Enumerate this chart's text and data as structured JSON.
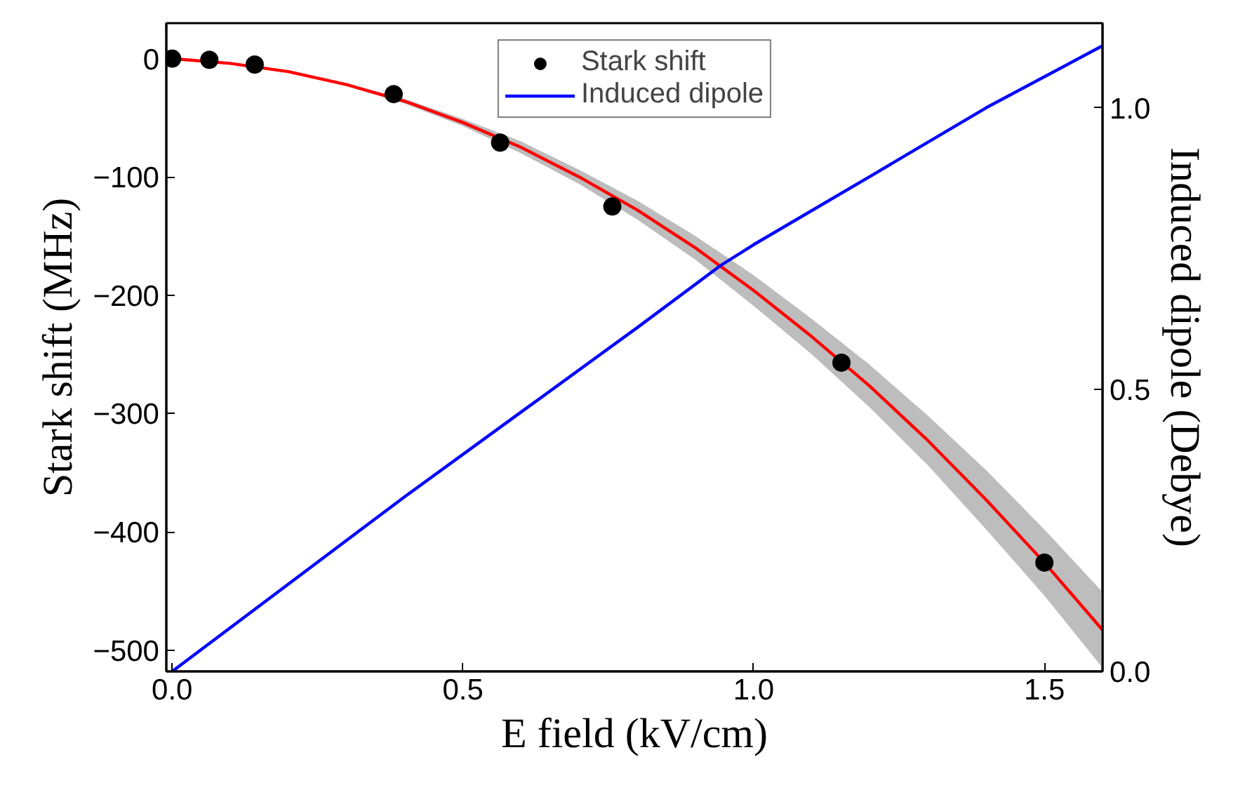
{
  "chart_data": {
    "type": "line",
    "xlabel": "E field (kV/cm)",
    "ylabel": "Stark shift (MHz)",
    "y2label": "Induced dipole (Debye)",
    "xlim": [
      -0.01,
      1.6
    ],
    "ylim": [
      -518,
      30
    ],
    "y2lim": [
      0,
      1.15
    ],
    "xticks": [
      {
        "value": 0,
        "label": "0.0"
      },
      0.5,
      {
        "value": 1,
        "label": "1.0"
      },
      1.5
    ],
    "yticks": [
      0,
      -100,
      -200,
      -300,
      -400,
      -500
    ],
    "y2ticks": [
      {
        "value": 0,
        "label": "0.0"
      },
      0.5,
      {
        "value": 1,
        "label": "1.0"
      }
    ],
    "grid": false,
    "legend": "top",
    "series": [
      {
        "name": "Stark shift",
        "type": "scatter",
        "marker": "circle",
        "color": "#000000",
        "x": [
          0.0,
          0.064,
          0.142,
          0.381,
          0.564,
          0.757,
          1.151,
          1.5
        ],
        "values": [
          0,
          -1,
          -5,
          -30,
          -71,
          -125,
          -257,
          -426
        ]
      },
      {
        "color": "#ff0000",
        "x": [
          0,
          0.1,
          0.2,
          0.3,
          0.4,
          0.5,
          0.6,
          0.7,
          0.8,
          0.9,
          1.0,
          1.1,
          1.2,
          1.3,
          1.4,
          1.5,
          1.6
        ],
        "values": [
          0,
          -4,
          -11,
          -22,
          -36,
          -54,
          -75,
          -100,
          -128,
          -160,
          -196,
          -235,
          -277,
          -323,
          -373,
          -426,
          -483
        ],
        "lower": [
          0,
          -4,
          -11,
          -23,
          -38,
          -57,
          -80,
          -106,
          -136,
          -170,
          -209,
          -250,
          -295,
          -344,
          -398,
          -454,
          -515
        ],
        "upper": [
          0,
          -4,
          -11,
          -21,
          -34,
          -51,
          -70,
          -94,
          -120,
          -150,
          -183,
          -220,
          -259,
          -302,
          -348,
          -398,
          -451
        ]
      },
      {
        "name": "Induced dipole",
        "axis": "y2",
        "color": "#0000ff",
        "x": [
          0,
          0.2,
          0.4,
          0.6,
          0.8,
          0.943,
          1.0,
          1.2,
          1.4,
          1.6
        ],
        "values": [
          0,
          0.155,
          0.31,
          0.46,
          0.61,
          0.72,
          0.757,
          0.878,
          1.0,
          1.11
        ]
      }
    ]
  }
}
